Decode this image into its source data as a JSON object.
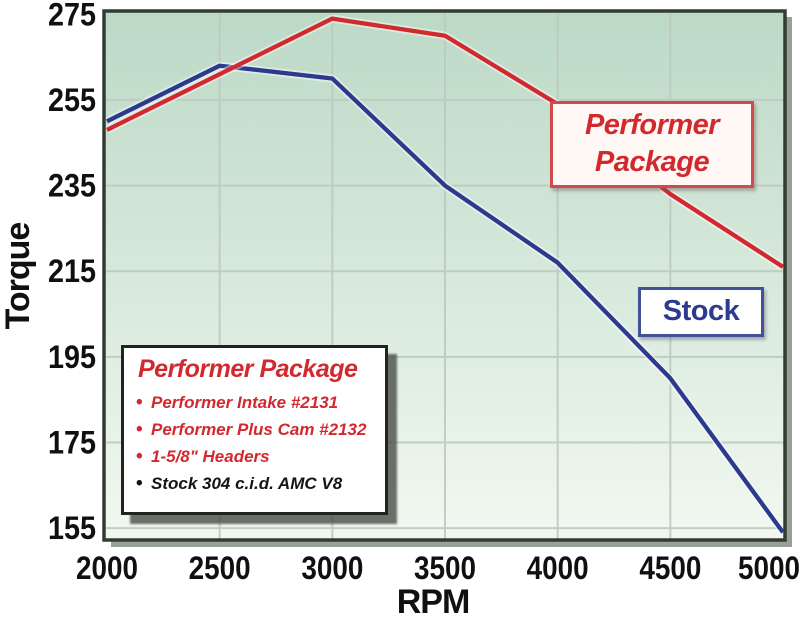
{
  "chart_data": {
    "type": "line",
    "title": "",
    "xlabel": "RPM",
    "ylabel": "Torque",
    "x": [
      2000,
      2500,
      3000,
      3500,
      4000,
      4500,
      5000
    ],
    "x_tick_labels": [
      "2000",
      "2500",
      "3000",
      "3500",
      "4000",
      "4500",
      "5000"
    ],
    "y_ticks": [
      275,
      255,
      235,
      215,
      195,
      175,
      155
    ],
    "xlim": [
      2000,
      5000
    ],
    "ylim": [
      152,
      276
    ],
    "grid": true,
    "legend_position": "inline-callouts",
    "series": [
      {
        "name": "Performer Package",
        "color": "#d2292f",
        "values": [
          248,
          261,
          274,
          270,
          254,
          233,
          216
        ]
      },
      {
        "name": "Stock",
        "color": "#2b3a8e",
        "values": [
          250,
          263,
          260,
          235,
          217,
          190,
          154
        ]
      }
    ]
  },
  "labels": {
    "performer_callout": {
      "line1": "Performer",
      "line2": "Package"
    },
    "stock_callout": "Stock"
  },
  "legend_box": {
    "title": "Performer Package",
    "title_color": "#d2292f",
    "bullet_glyph": "•",
    "items": [
      {
        "text": "Performer Intake #2131",
        "color": "#d2292f"
      },
      {
        "text": "Performer Plus Cam #2132",
        "color": "#d2292f"
      },
      {
        "text": "1-5/8\" Headers",
        "color": "#d2292f"
      },
      {
        "text": "Stock 304 c.i.d. AMC V8",
        "color": "#141414"
      }
    ]
  },
  "colors": {
    "performer_line": "#d2292f",
    "stock_line": "#2b3a8e",
    "plot_bg_top": "#bcd9c6",
    "plot_bg_bottom": "#f2f8f1",
    "grid": "#bccbbf",
    "border": "#343b35",
    "tick_text": "#101010",
    "plot_shadow": "#97a197"
  }
}
